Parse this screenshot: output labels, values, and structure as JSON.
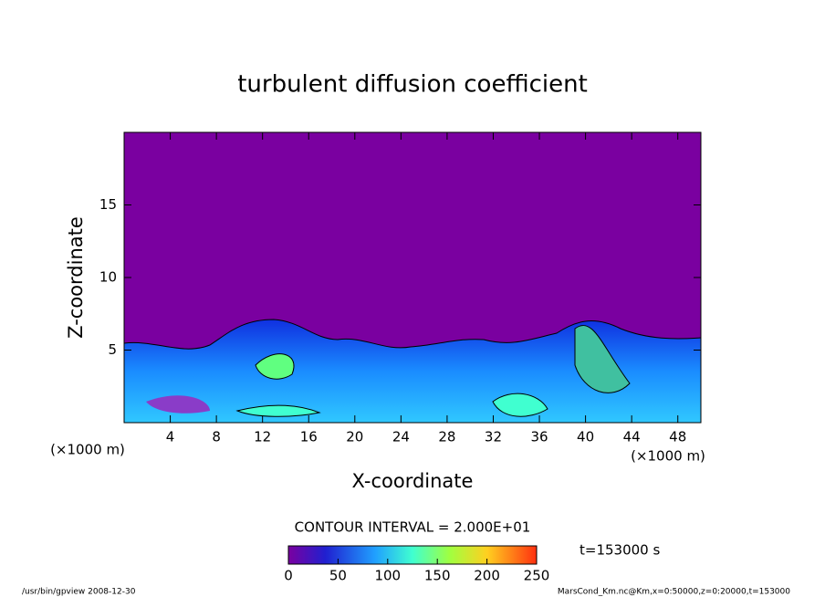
{
  "chart_data": {
    "type": "contour",
    "title": "turbulent diffusion coefficient",
    "x_label": "X-coordinate",
    "y_label": "Z-coordinate",
    "x_unit": "(×1000 m)",
    "y_unit": "(×1000 m)",
    "xlim": [
      0,
      50
    ],
    "xticks": [
      4,
      8,
      12,
      16,
      20,
      24,
      28,
      32,
      36,
      40,
      44,
      48
    ],
    "ylim": [
      0,
      20
    ],
    "yticks": [
      5,
      10,
      15
    ],
    "contour_interval": "CONTOUR INTERVAL = 2.000E+01",
    "colorbar": {
      "lim": [
        0,
        250
      ],
      "ticks": [
        0,
        50,
        100,
        150,
        200,
        250
      ]
    },
    "time_label": "t=153000 s",
    "footer_left": "/usr/bin/gpview  2008-12-30",
    "footer_right": "MarsCond_Km.nc@Km,x=0:50000,z=0:20000,t=153000"
  }
}
